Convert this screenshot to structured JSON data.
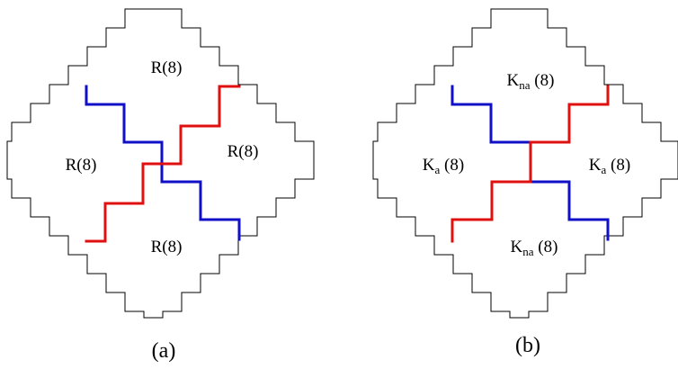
{
  "colors": {
    "blue": "#1010c8",
    "red": "#e01010",
    "outline": "#000000"
  },
  "panel_a": {
    "caption": "(a)",
    "regions": {
      "top": "R(8)",
      "left": "R(8)",
      "right": "R(8)",
      "bottom": "R(8)"
    }
  },
  "panel_b": {
    "caption": "(b)",
    "regions": {
      "top": {
        "main": "K",
        "sub": "na",
        "tail": " (8)"
      },
      "left": {
        "main": "K",
        "sub": "a",
        "tail": " (8)"
      },
      "right": {
        "main": "K",
        "sub": "a",
        "tail": " (8)"
      },
      "bottom": {
        "main": "K",
        "sub": "na",
        "tail": " (8)"
      }
    }
  }
}
